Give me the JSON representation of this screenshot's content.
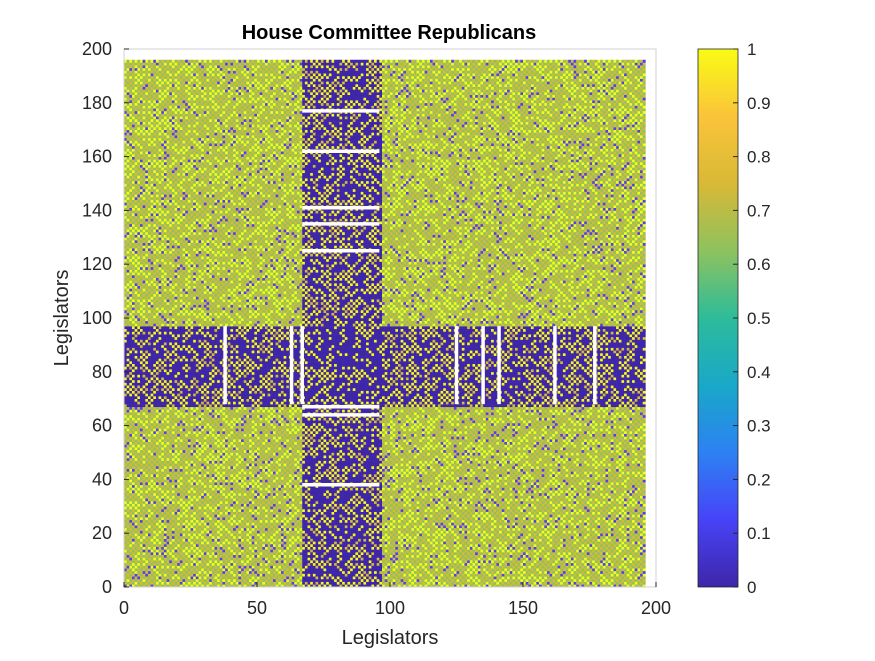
{
  "chart_data": {
    "type": "heatmap",
    "title": "House Committee Republicans",
    "xlabel": "Legislators",
    "ylabel": "Legislators",
    "xlim": [
      0,
      200
    ],
    "ylim": [
      0,
      200
    ],
    "xticks": [
      0,
      50,
      100,
      150,
      200
    ],
    "yticks": [
      0,
      20,
      40,
      60,
      80,
      100,
      120,
      140,
      160,
      180,
      200
    ],
    "matrix_size": 196,
    "colorbar": {
      "min": 0,
      "max": 1,
      "ticks": [
        "0",
        "0.1",
        "0.2",
        "0.3",
        "0.4",
        "0.5",
        "0.6",
        "0.7",
        "0.8",
        "0.9",
        "1"
      ]
    },
    "colormap": [
      "#3e26a8",
      "#4743f8",
      "#2d81f3",
      "#19a8c8",
      "#2dbc9a",
      "#8ec25e",
      "#d8b936",
      "#fac43a",
      "#f9fb15"
    ],
    "low_similarity_block": {
      "x_range": [
        67,
        97
      ],
      "y_range": [
        67,
        97
      ]
    },
    "white_bars_horizontal": [
      {
        "y": 177,
        "x_from": 67,
        "x_to": 96
      },
      {
        "y": 162,
        "x_from": 67,
        "x_to": 96
      },
      {
        "y": 141,
        "x_from": 67,
        "x_to": 96
      },
      {
        "y": 135,
        "x_from": 67,
        "x_to": 96
      },
      {
        "y": 125,
        "x_from": 67,
        "x_to": 96
      },
      {
        "y": 67,
        "x_from": 67,
        "x_to": 96
      },
      {
        "y": 64,
        "x_from": 67,
        "x_to": 96
      },
      {
        "y": 38,
        "x_from": 67,
        "x_to": 96
      }
    ],
    "white_bars_vertical": [
      {
        "x": 38,
        "y_from": 68,
        "y_to": 97
      },
      {
        "x": 63,
        "y_from": 68,
        "y_to": 97
      },
      {
        "x": 67,
        "y_from": 68,
        "y_to": 97
      },
      {
        "x": 125,
        "y_from": 68,
        "y_to": 97
      },
      {
        "x": 135,
        "y_from": 68,
        "y_to": 97
      },
      {
        "x": 141,
        "y_from": 68,
        "y_to": 97
      },
      {
        "x": 162,
        "y_from": 68,
        "y_to": 97
      },
      {
        "x": 177,
        "y_from": 68,
        "y_to": 97
      }
    ]
  }
}
